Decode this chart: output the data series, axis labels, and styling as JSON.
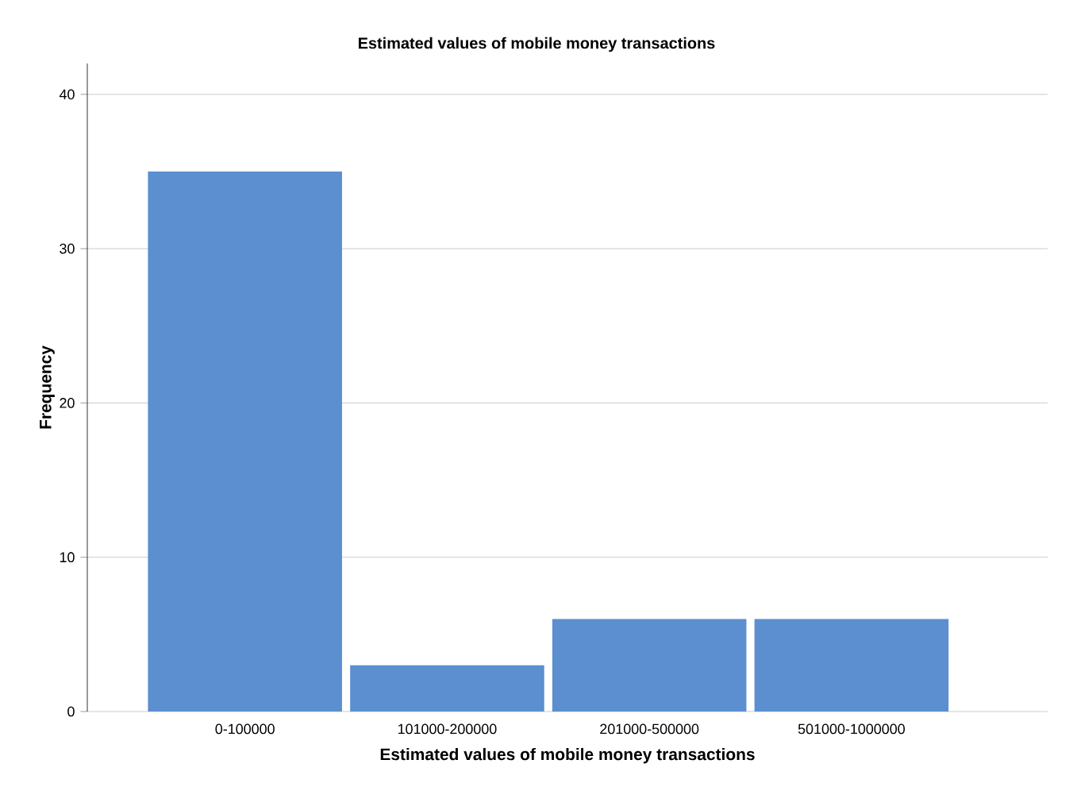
{
  "chart_data": {
    "type": "bar",
    "title": "Estimated values of mobile money transactions",
    "xlabel": "Estimated values of mobile money transactions",
    "ylabel": "Frequency",
    "categories": [
      "0-100000",
      "101000-200000",
      "201000-500000",
      "501000-1000000"
    ],
    "values": [
      35,
      3,
      6,
      6
    ],
    "color": "#5b8fcf",
    "ylim": [
      0,
      42
    ],
    "yticks": [
      0,
      10,
      20,
      30,
      40
    ],
    "grid": "y"
  }
}
